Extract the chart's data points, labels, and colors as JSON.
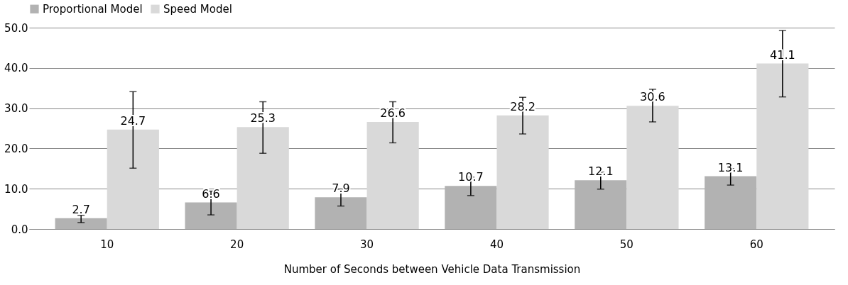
{
  "chart_data": {
    "type": "bar",
    "xlabel": "Number of Seconds between Vehicle Data Transmission",
    "categories": [
      "10",
      "20",
      "30",
      "40",
      "50",
      "60"
    ],
    "series": [
      {
        "name": "Proportional Model",
        "color": "#b2b2b2",
        "values": [
          2.7,
          6.6,
          7.9,
          10.7,
          12.1,
          13.1
        ],
        "errors": [
          [
            1.6,
            3.4
          ],
          [
            3.5,
            9.4
          ],
          [
            5.7,
            9.9
          ],
          [
            8.3,
            12.9
          ],
          [
            9.9,
            14.1
          ],
          [
            10.9,
            15.0
          ]
        ]
      },
      {
        "name": "Speed Model",
        "color": "#d9d9d9",
        "values": [
          24.7,
          25.3,
          26.6,
          28.2,
          30.6,
          41.1
        ],
        "errors": [
          [
            15.1,
            34.1
          ],
          [
            18.8,
            31.6
          ],
          [
            21.4,
            31.6
          ],
          [
            23.6,
            32.7
          ],
          [
            26.6,
            34.7
          ],
          [
            32.8,
            49.3
          ]
        ]
      }
    ],
    "ylim": [
      0,
      50
    ],
    "yticks": [
      {
        "value": 0,
        "label": "0.0"
      },
      {
        "value": 10,
        "label": "10.0"
      },
      {
        "value": 20,
        "label": "20.0"
      },
      {
        "value": 30,
        "label": "30.0"
      },
      {
        "value": 40,
        "label": "40.0"
      },
      {
        "value": 50,
        "label": "50.0"
      }
    ],
    "grid": "y",
    "legend": "top",
    "data_labels": true
  }
}
